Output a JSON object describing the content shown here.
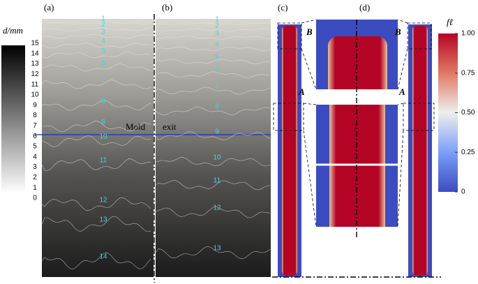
{
  "panels": {
    "a": "(a)",
    "b": "(b)",
    "c": "(c)",
    "d": "(d)"
  },
  "d_colorbar": {
    "title": "d/mm",
    "ticks": [
      "15",
      "14",
      "13",
      "12",
      "11",
      "10",
      "9",
      "8",
      "7",
      "6",
      "5",
      "4",
      "3",
      "2",
      "1",
      "0"
    ]
  },
  "f_colorbar": {
    "title": "fℓ",
    "ticks": [
      "1.00",
      "0.75",
      "0.50",
      "0.25",
      "0"
    ]
  },
  "mold_exit": [
    "Mold",
    "exit"
  ],
  "zoom_labels": {
    "A": "A",
    "B": "B"
  },
  "contours_a": [
    "1",
    "2",
    "3",
    "4",
    "5",
    "6",
    "7",
    "8",
    "9",
    "10",
    "11",
    "12",
    "13",
    "14"
  ],
  "contours_b": [
    "1",
    "2",
    "3",
    "4",
    "5",
    "6",
    "7",
    "8",
    "9",
    "10",
    "11",
    "12",
    "13"
  ]
}
